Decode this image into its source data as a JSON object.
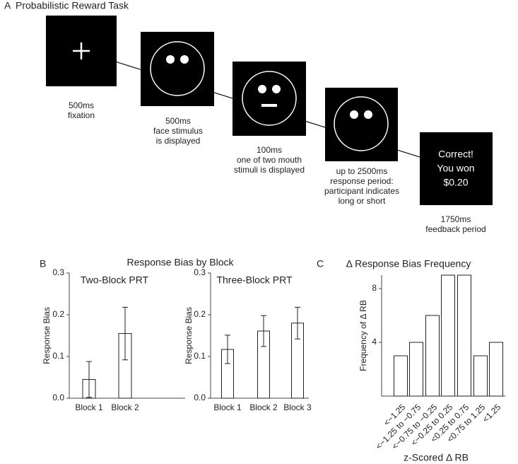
{
  "panel_a": {
    "label": "A",
    "title": "Probabilistic Reward Task",
    "steps": [
      {
        "caption": [
          "500ms",
          "fixation"
        ]
      },
      {
        "caption": [
          "500ms",
          "face stimulus",
          "is displayed"
        ]
      },
      {
        "caption": [
          "100ms",
          "one of two mouth",
          "stimuli is displayed"
        ]
      },
      {
        "caption": [
          "up to 2500ms",
          "response period:",
          "participant indicates",
          "long or short"
        ]
      },
      {
        "caption": [
          "1750ms",
          "feedback period"
        ],
        "screen": [
          "Correct!",
          "You won",
          "$0.20"
        ]
      }
    ]
  },
  "panel_b": {
    "label": "B",
    "title": "Response Bias by Block"
  },
  "panel_c": {
    "label": "C"
  },
  "chart_data": [
    {
      "type": "bar",
      "title": "Two-Block PRT",
      "y_label": "Response Bias",
      "categories": [
        "Block 1",
        "Block 2"
      ],
      "values": [
        0.045,
        0.155
      ],
      "errors": [
        0.043,
        0.063
      ],
      "color": "#ffffff",
      "ylim": [
        0,
        0.3
      ],
      "yticks": [
        {
          "value": 0,
          "label": "0.0"
        },
        0.1,
        0.2,
        0.3
      ]
    },
    {
      "type": "bar",
      "title": "Three-Block PRT",
      "y_label": "Response Bias",
      "categories": [
        "Block 1",
        "Block 2",
        "Block 3"
      ],
      "values": [
        0.117,
        0.161,
        0.18
      ],
      "errors": [
        0.034,
        0.037,
        0.038
      ],
      "color": "#ffffff",
      "ylim": [
        0,
        0.3
      ],
      "yticks": [
        {
          "value": 0,
          "label": "0.0"
        },
        0.1,
        0.2,
        0.3
      ]
    },
    {
      "type": "bar",
      "title": "Δ Response Bias Frequency",
      "y_label": "Frequency of Δ RB",
      "x_label": "z-Scored Δ RB",
      "categories": [
        "<−1.25",
        "<−1.25 to −0.75",
        "<−0.75 to −0.25",
        "<−0.25 to 0.25",
        "<0.25 to 0.75",
        "<0.75 to 1.25",
        "<1.25"
      ],
      "values": [
        3,
        4,
        6,
        9,
        9,
        3,
        4
      ],
      "color": "#ffffff",
      "ylim": [
        0,
        9
      ],
      "yticks": [
        4,
        8
      ]
    }
  ]
}
